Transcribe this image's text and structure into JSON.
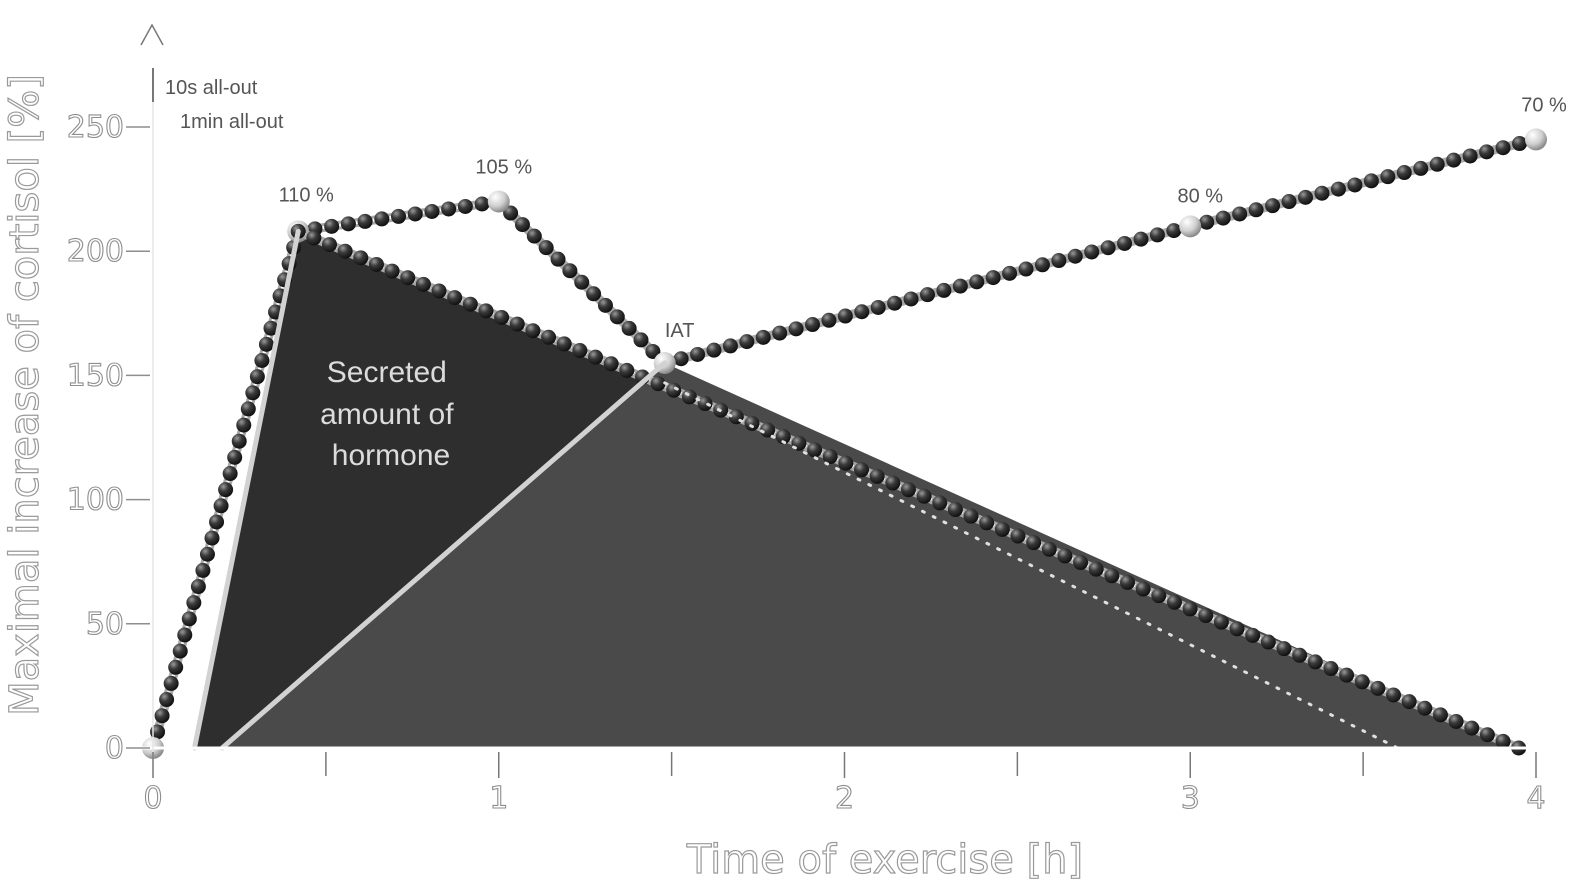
{
  "chart_data": {
    "type": "line",
    "xlabel": "Time of exercise [h]",
    "ylabel": "Maximal increase of cortisol [%]",
    "xlim": [
      0,
      4
    ],
    "ylim": [
      0,
      250
    ],
    "x_ticks": [
      0,
      1,
      2,
      3,
      4
    ],
    "x_minor_ticks": [
      0.5,
      1.5,
      2.5,
      3.5
    ],
    "y_ticks": [
      0,
      50,
      100,
      150,
      200,
      250
    ],
    "legend": [
      "10s all-out",
      "1min all-out"
    ],
    "area_label": "Secreted amount of hormone",
    "areas": [
      {
        "name": "",
        "points": [
          [
            0.12,
            0
          ],
          [
            0.42,
            208
          ],
          [
            3.95,
            0
          ]
        ],
        "color": "#2e2e2e"
      },
      {
        "name": "",
        "points": [
          [
            0.2,
            0
          ],
          [
            1.48,
            155
          ],
          [
            3.95,
            0
          ]
        ],
        "color": "#4a4a4a"
      }
    ],
    "series": [
      {
        "name": "",
        "style": "beaded",
        "x": [
          0.0,
          0.42,
          1.0,
          1.48,
          3.0,
          4.0
        ],
        "y": [
          0,
          208,
          220,
          155,
          210,
          245
        ],
        "points": [
          {
            "x": 0.0,
            "y": 0,
            "label": ""
          },
          {
            "x": 0.42,
            "y": 208,
            "label": "110 %"
          },
          {
            "x": 1.0,
            "y": 220,
            "label": "105 %"
          },
          {
            "x": 1.48,
            "y": 155,
            "label": "IAT"
          },
          {
            "x": 3.0,
            "y": 210,
            "label": "80 %"
          },
          {
            "x": 4.0,
            "y": 245,
            "label": "70 %"
          }
        ]
      },
      {
        "name": "",
        "style": "beaded",
        "x": [
          0.42,
          3.95
        ],
        "y": [
          208,
          0
        ]
      },
      {
        "name": "",
        "style": "light",
        "x": [
          0.12,
          0.42
        ],
        "y": [
          0,
          208
        ]
      },
      {
        "name": "",
        "style": "light",
        "x": [
          0.2,
          1.48
        ],
        "y": [
          0,
          155
        ]
      },
      {
        "name": "",
        "style": "dotted",
        "x": [
          1.48,
          3.6
        ],
        "y": [
          147,
          0
        ]
      }
    ],
    "grid": false
  }
}
